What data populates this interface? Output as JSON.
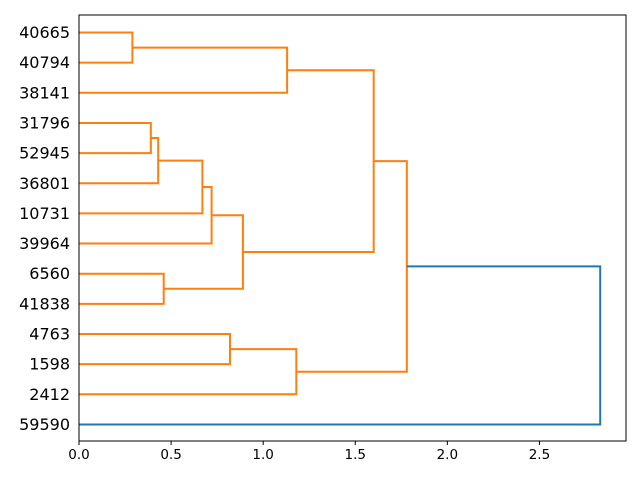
{
  "chart_data": {
    "type": "dendrogram",
    "title": "",
    "xlabel": "",
    "ylabel": "",
    "orientation": "labels-left-root-right",
    "grid": false,
    "legend": null,
    "leaves": [
      "40665",
      "40794",
      "38141",
      "31796",
      "52945",
      "36801",
      "10731",
      "39964",
      "6560",
      "41838",
      "4763",
      "1598",
      "2412",
      "59590"
    ],
    "merges": [
      {
        "a": "L0",
        "b": "L1",
        "d": 0.29,
        "c": "orange"
      },
      {
        "a": "M0",
        "b": "L2",
        "d": 1.13,
        "c": "orange"
      },
      {
        "a": "L3",
        "b": "L4",
        "d": 0.39,
        "c": "orange"
      },
      {
        "a": "M2",
        "b": "L5",
        "d": 0.43,
        "c": "orange"
      },
      {
        "a": "M3",
        "b": "L6",
        "d": 0.67,
        "c": "orange"
      },
      {
        "a": "M4",
        "b": "L7",
        "d": 0.72,
        "c": "orange"
      },
      {
        "a": "L8",
        "b": "L9",
        "d": 0.46,
        "c": "orange"
      },
      {
        "a": "M5",
        "b": "M6",
        "d": 0.89,
        "c": "orange"
      },
      {
        "a": "M1",
        "b": "M7",
        "d": 1.6,
        "c": "orange"
      },
      {
        "a": "L10",
        "b": "L11",
        "d": 0.82,
        "c": "orange"
      },
      {
        "a": "M9",
        "b": "L12",
        "d": 1.18,
        "c": "orange"
      },
      {
        "a": "M8",
        "b": "M10",
        "d": 1.78,
        "c": "orange"
      },
      {
        "a": "M11",
        "b": "L13",
        "d": 2.83,
        "c": "blue"
      }
    ],
    "xticks": {
      "values": [
        0.0,
        0.5,
        1.0,
        1.5,
        2.0,
        2.5
      ],
      "labels": [
        "0.0",
        "0.5",
        "1.0",
        "1.5",
        "2.0",
        "2.5"
      ]
    },
    "xlim": [
      0,
      2.97
    ],
    "colors": {
      "orange": "#ff7f0e",
      "blue": "#1f77b4",
      "axis": "#000000",
      "background": "#ffffff"
    }
  }
}
